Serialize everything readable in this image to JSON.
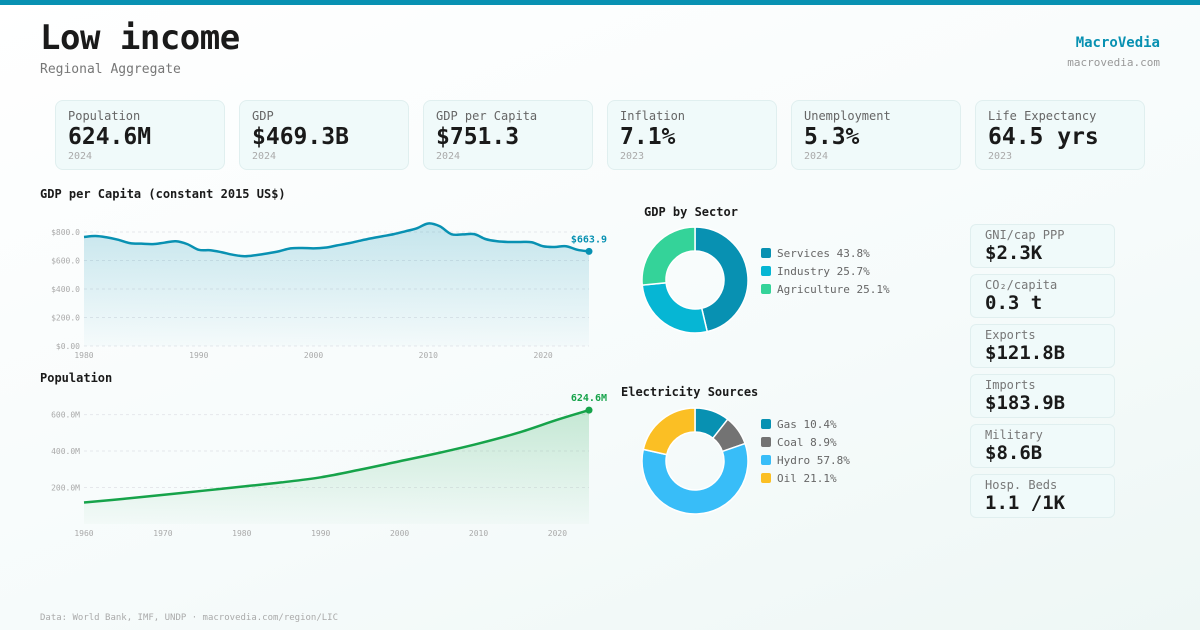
{
  "header": {
    "title": "Low income",
    "subtitle": "Regional Aggregate",
    "brand": "MacroVedia",
    "brand_url": "macrovedia.com"
  },
  "kpis": [
    {
      "label": "Population",
      "value": "624.6M",
      "year": "2024"
    },
    {
      "label": "GDP",
      "value": "$469.3B",
      "year": "2024"
    },
    {
      "label": "GDP per Capita",
      "value": "$751.3",
      "year": "2024"
    },
    {
      "label": "Inflation",
      "value": "7.1%",
      "year": "2023"
    },
    {
      "label": "Unemployment",
      "value": "5.3%",
      "year": "2024"
    },
    {
      "label": "Life Expectancy",
      "value": "64.5 yrs",
      "year": "2023"
    }
  ],
  "side_stats": [
    {
      "label": "GNI/cap PPP",
      "value": "$2.3K"
    },
    {
      "label": "CO₂/capita",
      "value": "0.3 t"
    },
    {
      "label": "Exports",
      "value": "$121.8B"
    },
    {
      "label": "Imports",
      "value": "$183.9B"
    },
    {
      "label": "Military",
      "value": "$8.6B"
    },
    {
      "label": "Hosp. Beds",
      "value": "1.1 /1K"
    }
  ],
  "footer": "Data: World Bank, IMF, UNDP · macrovedia.com/region/LIC",
  "colors": {
    "accent": "#0891b2",
    "population": "#16a34a"
  },
  "chart_data": [
    {
      "type": "area",
      "title": "GDP per Capita (constant 2015 US$)",
      "xlabel": "",
      "ylabel": "",
      "ylim": [
        0,
        800
      ],
      "yticks": [
        0,
        200,
        400,
        600,
        800
      ],
      "ytick_labels": [
        "$0.00",
        "$200.0",
        "$400.0",
        "$600.0",
        "$800.0"
      ],
      "xticks": [
        1980,
        1990,
        2000,
        2010,
        2020
      ],
      "grid": true,
      "end_label": "$663.9",
      "color": "#0891b2",
      "x": [
        1980,
        1981,
        1982,
        1983,
        1984,
        1985,
        1986,
        1987,
        1988,
        1989,
        1990,
        1991,
        1992,
        1993,
        1994,
        1995,
        1996,
        1997,
        1998,
        1999,
        2000,
        2001,
        2002,
        2003,
        2004,
        2005,
        2006,
        2007,
        2008,
        2009,
        2010,
        2011,
        2012,
        2013,
        2014,
        2015,
        2016,
        2017,
        2018,
        2019,
        2020,
        2021,
        2022,
        2023,
        2024
      ],
      "values": [
        765,
        772,
        762,
        745,
        722,
        718,
        715,
        725,
        735,
        715,
        675,
        672,
        658,
        640,
        630,
        638,
        650,
        665,
        685,
        688,
        685,
        690,
        705,
        720,
        738,
        755,
        770,
        785,
        805,
        826,
        860,
        840,
        785,
        783,
        785,
        750,
        735,
        730,
        730,
        728,
        700,
        695,
        700,
        675,
        663.9
      ]
    },
    {
      "type": "area",
      "title": "Population",
      "xlabel": "",
      "ylabel": "",
      "ylim": [
        0,
        680
      ],
      "yticks": [
        200,
        400,
        600
      ],
      "ytick_labels": [
        "200.0M",
        "400.0M",
        "600.0M"
      ],
      "xticks": [
        1960,
        1970,
        1980,
        1990,
        2000,
        2010,
        2020
      ],
      "grid": true,
      "end_label": "624.6M",
      "color": "#16a34a",
      "x": [
        1960,
        1965,
        1970,
        1975,
        1980,
        1985,
        1990,
        1995,
        2000,
        2005,
        2010,
        2015,
        2020,
        2024
      ],
      "values": [
        118,
        138,
        160,
        182,
        205,
        228,
        256,
        298,
        344,
        390,
        441,
        500,
        572,
        624.6
      ]
    },
    {
      "type": "pie",
      "title": "GDP by Sector",
      "labels": [
        "Services",
        "Industry",
        "Agriculture"
      ],
      "values": [
        43.8,
        25.7,
        25.1
      ],
      "legend_labels": [
        "Services 43.8%",
        "Industry 25.7%",
        "Agriculture 25.1%"
      ],
      "colors": [
        "#0891b2",
        "#06b6d4",
        "#34d399"
      ],
      "legend": "right"
    },
    {
      "type": "pie",
      "title": "Electricity Sources",
      "labels": [
        "Gas",
        "Coal",
        "Hydro",
        "Oil"
      ],
      "values": [
        10.4,
        8.9,
        57.8,
        21.1
      ],
      "legend_labels": [
        "Gas 10.4%",
        "Coal 8.9%",
        "Hydro 57.8%",
        "Oil 21.1%"
      ],
      "colors": [
        "#0891b2",
        "#737373",
        "#38bdf8",
        "#fbbf24"
      ],
      "legend": "right"
    }
  ]
}
